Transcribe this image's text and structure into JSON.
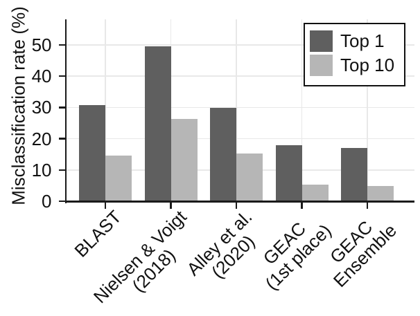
{
  "figure": {
    "title": "",
    "ylabel": "Misclassification rate (%)"
  },
  "chart_data": {
    "type": "bar",
    "title": "",
    "xlabel": "",
    "ylabel": "Misclassification rate (%)",
    "categories": [
      "BLAST",
      "Nielsen & Voigt\n(2018)",
      "Alley et al.\n(2020)",
      "GEAC\n(1st place)",
      "GEAC\nEnsemble"
    ],
    "series": [
      {
        "name": "Top 1",
        "color": "#5f5f5f",
        "values": [
          30.7,
          49.5,
          29.9,
          18.0,
          17.0
        ]
      },
      {
        "name": "Top 10",
        "color": "#b6b6b6",
        "values": [
          14.7,
          26.4,
          15.3,
          5.2,
          4.9
        ]
      }
    ],
    "yticks": [
      0,
      10,
      20,
      30,
      40,
      50
    ],
    "ylim": [
      0,
      58
    ],
    "grid": true,
    "legend_position": "upper right",
    "colors": {
      "axis": "#1a1a1a",
      "grid": "#e8e8e8",
      "background": "#ffffff"
    }
  }
}
